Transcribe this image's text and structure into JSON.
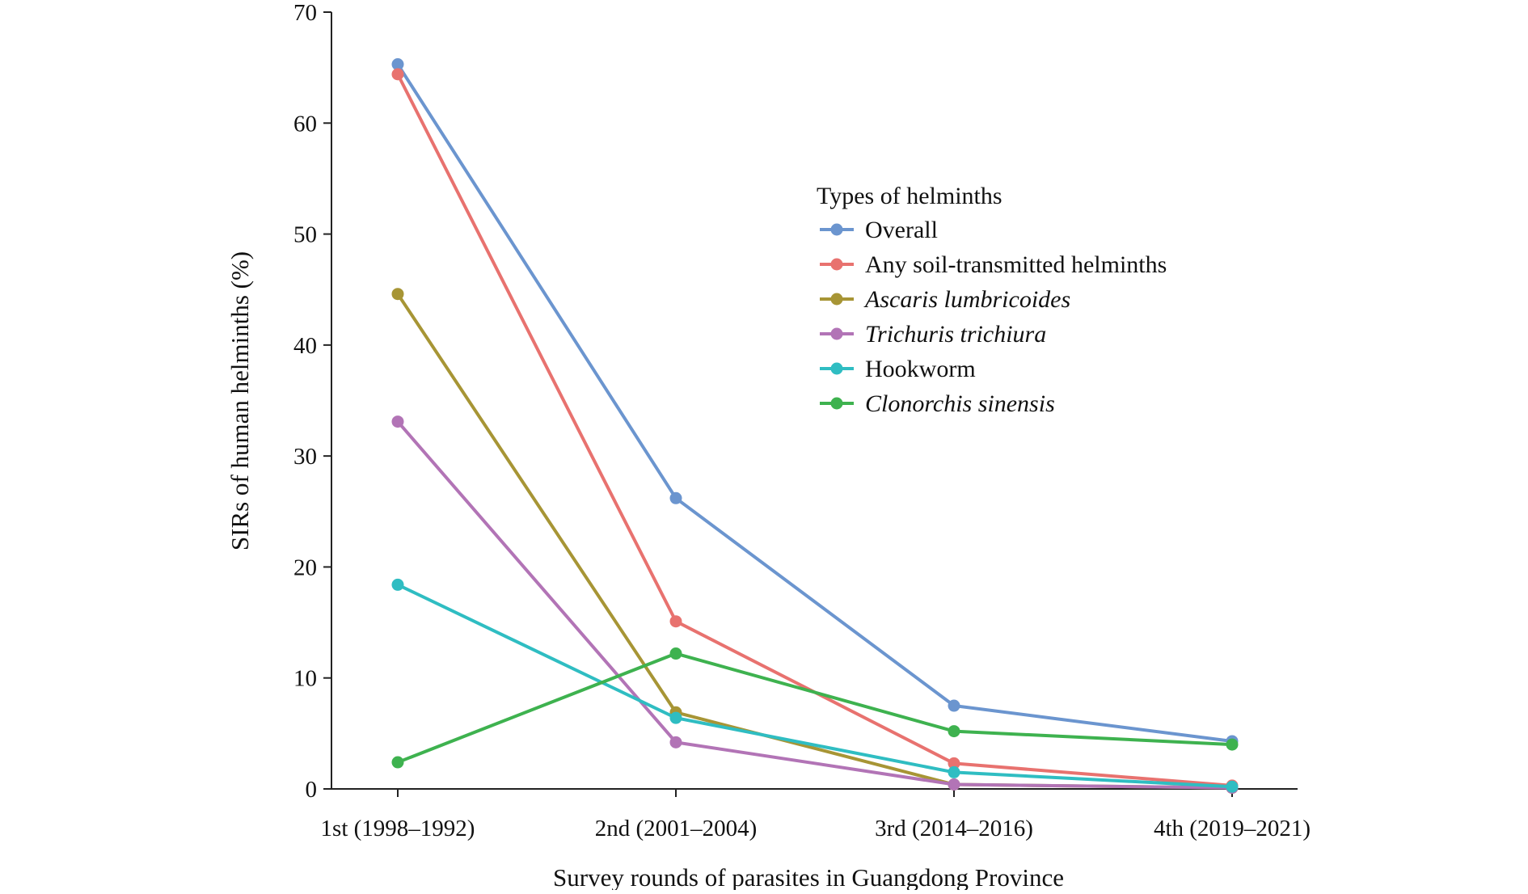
{
  "chart_data": {
    "type": "line",
    "title": "",
    "xlabel": "Survey rounds of parasites in Guangdong Province",
    "ylabel": "SIRs of human helminths (%)",
    "ylim": [
      0,
      70
    ],
    "yticks": [
      0,
      10,
      20,
      30,
      40,
      50,
      60,
      70
    ],
    "categories": [
      "1st (1998–1992)",
      "2nd (2001–2004)",
      "3rd (2014–2016)",
      "4th (2019–2021)"
    ],
    "grid": false,
    "legend": {
      "title": "Types of helminths",
      "placement": "center-right"
    },
    "series": [
      {
        "name": "Overall",
        "italic": false,
        "color": "#6b95cf",
        "values": [
          65.3,
          26.2,
          7.5,
          4.3
        ]
      },
      {
        "name": "Any soil-transmitted helminths",
        "italic": false,
        "color": "#e8726f",
        "values": [
          64.4,
          15.1,
          2.3,
          0.3
        ]
      },
      {
        "name": "Ascaris lumbricoides",
        "italic": true,
        "color": "#a79535",
        "values": [
          44.6,
          6.9,
          0.4,
          0.1
        ]
      },
      {
        "name": "Trichuris trichiura",
        "italic": true,
        "color": "#b274b6",
        "values": [
          33.1,
          4.2,
          0.4,
          0.1
        ]
      },
      {
        "name": "Hookworm",
        "italic": false,
        "color": "#2fbdc2",
        "values": [
          18.4,
          6.4,
          1.5,
          0.2
        ]
      },
      {
        "name": "Clonorchis sinensis",
        "italic": true,
        "color": "#3eb24f",
        "values": [
          2.4,
          12.2,
          5.2,
          4.0
        ]
      }
    ]
  }
}
